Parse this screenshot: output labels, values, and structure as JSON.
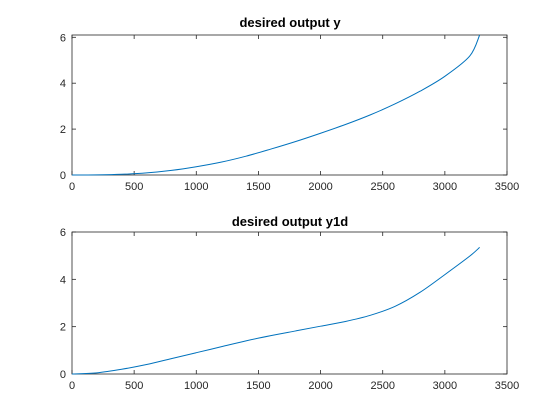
{
  "chart_data": [
    {
      "type": "line",
      "title": "desired output y",
      "xlabel": "",
      "ylabel": "",
      "xlim": [
        0,
        3500
      ],
      "ylim": [
        0,
        6.1
      ],
      "xticks": [
        "0",
        "500",
        "1000",
        "1500",
        "2000",
        "2500",
        "3000",
        "3500"
      ],
      "yticks": [
        "0",
        "2",
        "4",
        "6"
      ],
      "grid": false,
      "line_color": "#0072BD",
      "series": [
        {
          "x": [
            0,
            200,
            400,
            600,
            800,
            1000,
            1200,
            1400,
            1600,
            1800,
            2000,
            2200,
            2400,
            2600,
            2800,
            3000,
            3200,
            3280
          ],
          "y": [
            0,
            0.005,
            0.03,
            0.09,
            0.2,
            0.36,
            0.56,
            0.82,
            1.13,
            1.46,
            1.82,
            2.2,
            2.62,
            3.1,
            3.65,
            4.3,
            5.18,
            6.1
          ]
        }
      ]
    },
    {
      "type": "line",
      "title": "desired output y1d",
      "xlabel": "",
      "ylabel": "",
      "xlim": [
        0,
        3500
      ],
      "ylim": [
        0,
        6
      ],
      "xticks": [
        "0",
        "500",
        "1000",
        "1500",
        "2000",
        "2500",
        "3000",
        "3500"
      ],
      "yticks": [
        "0",
        "2",
        "4",
        "6"
      ],
      "grid": false,
      "line_color": "#0072BD",
      "series": [
        {
          "x": [
            0,
            200,
            400,
            600,
            800,
            1000,
            1200,
            1400,
            1600,
            1800,
            2000,
            2200,
            2400,
            2600,
            2800,
            3000,
            3200,
            3280
          ],
          "y": [
            0,
            0.05,
            0.2,
            0.4,
            0.65,
            0.9,
            1.15,
            1.4,
            1.62,
            1.82,
            2.02,
            2.22,
            2.48,
            2.86,
            3.45,
            4.2,
            4.98,
            5.35
          ]
        }
      ]
    }
  ]
}
